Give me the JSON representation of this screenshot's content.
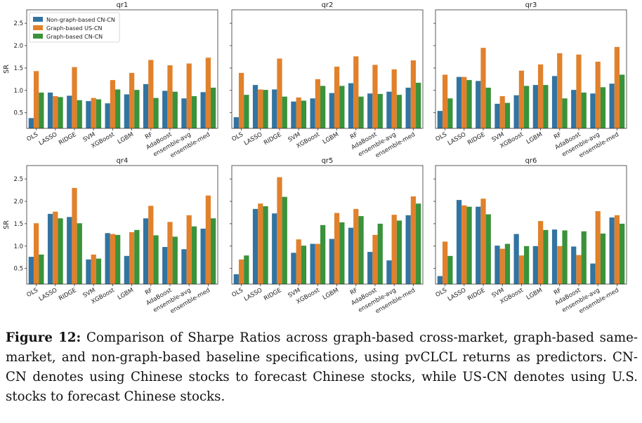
{
  "chart_data": {
    "type": "bar",
    "ylabel": "SR",
    "ylim": [
      0.15,
      2.8
    ],
    "yticks": [
      0.5,
      1.0,
      1.5,
      2.0,
      2.5
    ],
    "categories": [
      "OLS",
      "LASSO",
      "RIDGE",
      "SVM",
      "XGBoost",
      "LGBM",
      "RF",
      "AdaBoost",
      "ensemble-avg",
      "ensemble-med"
    ],
    "series_names": [
      "Non-graph-based CN-CN",
      "Graph-based US-CN",
      "Graph-based CN-CN"
    ],
    "series_colors": [
      "#3274a1",
      "#e1812c",
      "#3a923a"
    ],
    "legend_position": "upper-left of first panel",
    "panels": [
      {
        "title": "qr1",
        "series": [
          {
            "name": "Non-graph-based CN-CN",
            "values": [
              0.38,
              0.95,
              0.88,
              0.76,
              0.71,
              0.91,
              1.14,
              0.99,
              0.82,
              0.96
            ]
          },
          {
            "name": "Graph-based US-CN",
            "values": [
              1.43,
              0.87,
              1.52,
              0.83,
              1.23,
              1.39,
              1.68,
              1.56,
              1.6,
              1.73
            ]
          },
          {
            "name": "Graph-based CN-CN",
            "values": [
              0.95,
              0.85,
              0.78,
              0.8,
              1.02,
              1.01,
              0.83,
              0.97,
              0.87,
              1.06
            ]
          }
        ]
      },
      {
        "title": "qr2",
        "series": [
          {
            "name": "Non-graph-based CN-CN",
            "values": [
              0.4,
              1.12,
              1.02,
              0.75,
              0.82,
              0.94,
              1.16,
              0.93,
              0.97,
              1.06
            ]
          },
          {
            "name": "Graph-based US-CN",
            "values": [
              1.39,
              1.02,
              1.71,
              0.84,
              1.25,
              1.53,
              1.76,
              1.57,
              1.47,
              1.67
            ]
          },
          {
            "name": "Graph-based CN-CN",
            "values": [
              0.9,
              1.01,
              0.86,
              0.77,
              1.1,
              1.1,
              0.86,
              0.92,
              0.9,
              1.17
            ]
          }
        ]
      },
      {
        "title": "qr3",
        "series": [
          {
            "name": "Non-graph-based CN-CN",
            "values": [
              0.54,
              1.3,
              1.21,
              0.7,
              0.89,
              1.12,
              1.32,
              1.01,
              0.93,
              1.15
            ]
          },
          {
            "name": "Graph-based US-CN",
            "values": [
              1.35,
              1.3,
              1.95,
              0.87,
              1.44,
              1.58,
              1.83,
              1.8,
              1.64,
              1.97
            ]
          },
          {
            "name": "Graph-based CN-CN",
            "values": [
              0.82,
              1.23,
              1.06,
              0.72,
              1.1,
              1.12,
              0.82,
              0.95,
              1.07,
              1.35
            ]
          }
        ]
      },
      {
        "title": "qr4",
        "series": [
          {
            "name": "Non-graph-based CN-CN",
            "values": [
              0.76,
              1.72,
              1.65,
              0.7,
              1.29,
              0.78,
              1.62,
              0.98,
              0.93,
              1.39
            ]
          },
          {
            "name": "Graph-based US-CN",
            "values": [
              1.51,
              1.77,
              2.3,
              0.81,
              1.27,
              1.31,
              1.9,
              1.54,
              1.69,
              2.13
            ]
          },
          {
            "name": "Graph-based CN-CN",
            "values": [
              0.81,
              1.62,
              1.51,
              0.72,
              1.25,
              1.36,
              1.24,
              1.21,
              1.44,
              1.62
            ]
          }
        ]
      },
      {
        "title": "qr5",
        "series": [
          {
            "name": "Non-graph-based CN-CN",
            "values": [
              0.37,
              1.83,
              1.73,
              0.85,
              1.05,
              1.16,
              1.41,
              0.87,
              0.68,
              1.69
            ]
          },
          {
            "name": "Graph-based US-CN",
            "values": [
              0.7,
              1.95,
              2.54,
              1.15,
              1.05,
              1.74,
              1.83,
              1.25,
              1.7,
              2.11
            ]
          },
          {
            "name": "Graph-based CN-CN",
            "values": [
              0.79,
              1.89,
              2.1,
              1.01,
              1.47,
              1.53,
              1.67,
              1.5,
              1.57,
              1.95
            ]
          }
        ]
      },
      {
        "title": "qr6",
        "series": [
          {
            "name": "Non-graph-based CN-CN",
            "values": [
              0.33,
              2.03,
              1.88,
              1.01,
              1.27,
              1.0,
              1.37,
              0.99,
              0.61,
              1.64
            ]
          },
          {
            "name": "Graph-based US-CN",
            "values": [
              1.1,
              1.91,
              2.06,
              0.94,
              0.79,
              1.56,
              1.0,
              0.8,
              1.78,
              1.69
            ]
          },
          {
            "name": "Graph-based CN-CN",
            "values": [
              0.78,
              1.88,
              1.71,
              1.05,
              1.0,
              1.36,
              1.35,
              1.33,
              1.28,
              1.5
            ]
          }
        ]
      }
    ]
  },
  "caption": {
    "label": "Figure 12:",
    "text": " Comparison of Sharpe Ratios across graph-based cross-market, graph-based same-market, and non-graph-based baseline specifications, using pvCLCL returns as predictors. CN-CN denotes using Chinese stocks to forecast Chinese stocks, while US-CN denotes using U.S. stocks to forecast Chinese stocks."
  }
}
